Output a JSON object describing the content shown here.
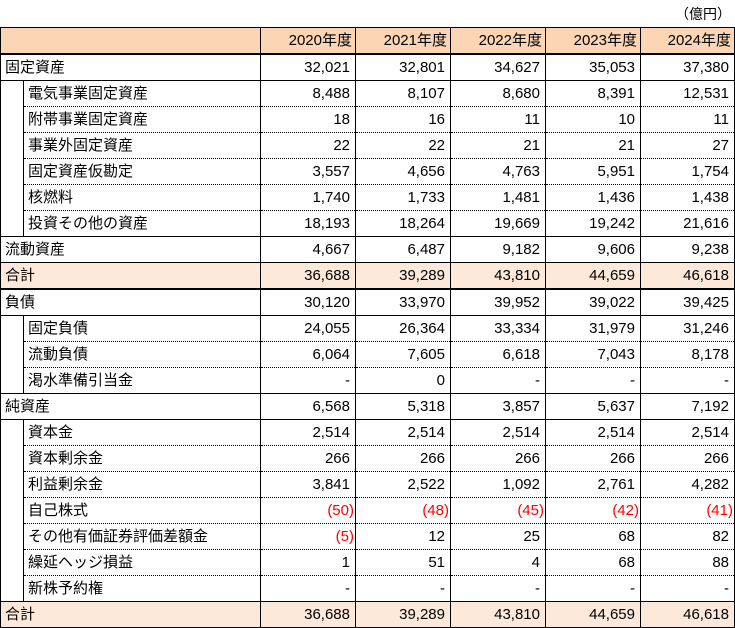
{
  "unit_label": "（億円）",
  "columns": [
    "2020年度",
    "2021年度",
    "2022年度",
    "2023年度",
    "2024年度"
  ],
  "rows": [
    {
      "label": "固定資産",
      "level": 0,
      "values": [
        "32,021",
        "32,801",
        "34,627",
        "35,053",
        "37,380"
      ]
    },
    {
      "label": "電気事業固定資産",
      "level": 1,
      "values": [
        "8,488",
        "8,107",
        "8,680",
        "8,391",
        "12,531"
      ]
    },
    {
      "label": "附帯事業固定資産",
      "level": 1,
      "values": [
        "18",
        "16",
        "11",
        "10",
        "11"
      ]
    },
    {
      "label": "事業外固定資産",
      "level": 1,
      "values": [
        "22",
        "22",
        "21",
        "21",
        "27"
      ]
    },
    {
      "label": "固定資産仮勘定",
      "level": 1,
      "values": [
        "3,557",
        "4,656",
        "4,763",
        "5,951",
        "1,754"
      ]
    },
    {
      "label": "核燃料",
      "level": 1,
      "values": [
        "1,740",
        "1,733",
        "1,481",
        "1,436",
        "1,438"
      ]
    },
    {
      "label": "投資その他の資産",
      "level": 1,
      "values": [
        "18,193",
        "18,264",
        "19,669",
        "19,242",
        "21,616"
      ]
    },
    {
      "label": "流動資産",
      "level": 0,
      "values": [
        "4,667",
        "6,487",
        "9,182",
        "9,606",
        "9,238"
      ]
    },
    {
      "label": "合計",
      "level": 0,
      "total": true,
      "values": [
        "36,688",
        "39,289",
        "43,810",
        "44,659",
        "46,618"
      ]
    },
    {
      "label": "負債",
      "level": 0,
      "values": [
        "30,120",
        "33,970",
        "39,952",
        "39,022",
        "39,425"
      ]
    },
    {
      "label": "固定負債",
      "level": 1,
      "values": [
        "24,055",
        "26,364",
        "33,334",
        "31,979",
        "31,246"
      ]
    },
    {
      "label": "流動負債",
      "level": 1,
      "values": [
        "6,064",
        "7,605",
        "6,618",
        "7,043",
        "8,178"
      ]
    },
    {
      "label": "渇水準備引当金",
      "level": 1,
      "values": [
        "-",
        "0",
        "-",
        "-",
        "-"
      ]
    },
    {
      "label": "純資産",
      "level": 0,
      "values": [
        "6,568",
        "5,318",
        "3,857",
        "5,637",
        "7,192"
      ]
    },
    {
      "label": "資本金",
      "level": 1,
      "values": [
        "2,514",
        "2,514",
        "2,514",
        "2,514",
        "2,514"
      ]
    },
    {
      "label": "資本剰余金",
      "level": 1,
      "values": [
        "266",
        "266",
        "266",
        "266",
        "266"
      ]
    },
    {
      "label": "利益剰余金",
      "level": 1,
      "values": [
        "3,841",
        "2,522",
        "1,092",
        "2,761",
        "4,282"
      ]
    },
    {
      "label": "自己株式",
      "level": 1,
      "values": [
        "(50)",
        "(48)",
        "(45)",
        "(42)",
        "(41)"
      ]
    },
    {
      "label": "その他有価証券評価差額金",
      "level": 1,
      "values": [
        "(5)",
        "12",
        "25",
        "68",
        "82"
      ]
    },
    {
      "label": "繰延ヘッジ損益",
      "level": 1,
      "values": [
        "1",
        "51",
        "4",
        "68",
        "88"
      ]
    },
    {
      "label": "新株予約権",
      "level": 1,
      "values": [
        "-",
        "-",
        "-",
        "-",
        "-"
      ]
    },
    {
      "label": "合計",
      "level": 0,
      "total": true,
      "values": [
        "36,688",
        "39,289",
        "43,810",
        "44,659",
        "46,618"
      ]
    }
  ],
  "colors": {
    "header_bg": "#fcd5b4",
    "total_bg": "#fde9d9",
    "negative": "#ff0000"
  }
}
